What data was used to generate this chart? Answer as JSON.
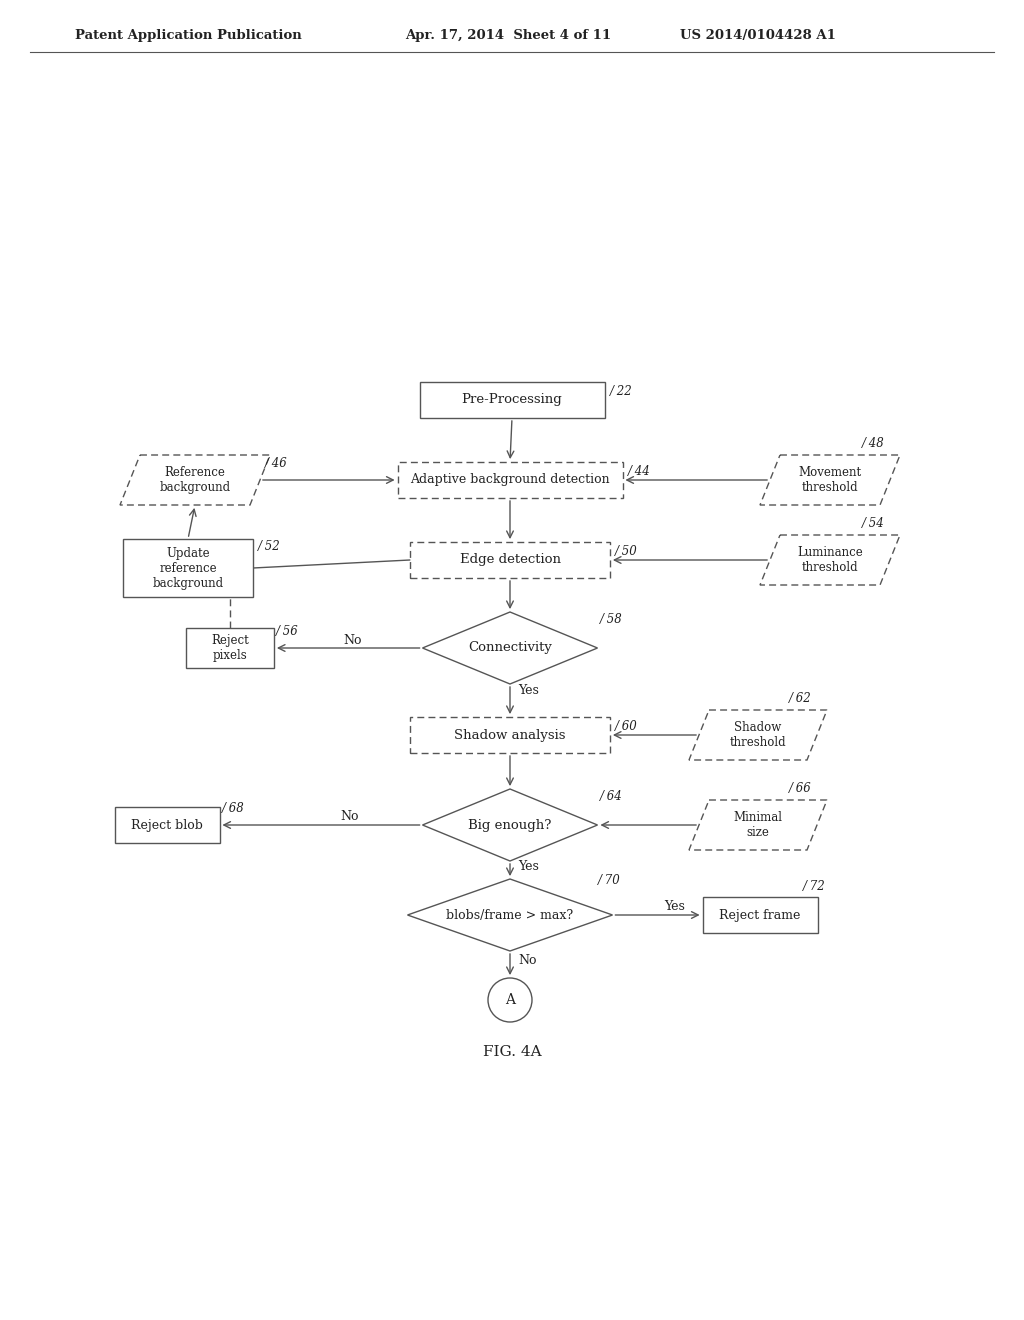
{
  "bg_color": "#ffffff",
  "header_left": "Patent Application Publication",
  "header_mid": "Apr. 17, 2014  Sheet 4 of 11",
  "header_right": "US 2014/0104428 A1",
  "caption": "FIG. 4A",
  "line_color": "#555555",
  "text_color": "#222222"
}
